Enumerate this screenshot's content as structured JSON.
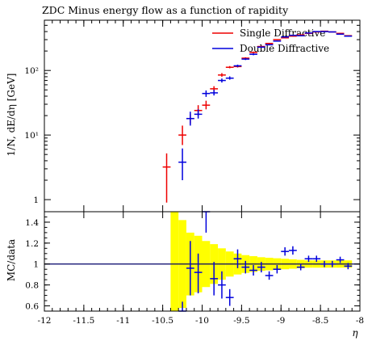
{
  "colors": {
    "single": "#ee0000",
    "double": "#0000dd",
    "band": "#ffff00",
    "refline": "#000066"
  },
  "chart_data": [
    {
      "type": "line",
      "panel": "main",
      "title": "ZDC Minus energy flow as a function of rapidity",
      "ylabel": "1/N, dE/dη [GeV]",
      "y_scale": "log",
      "ylim": [
        0.65,
        600
      ],
      "y_ticks": [
        {
          "value": 1,
          "label": "1"
        },
        {
          "value": 10,
          "label": "10¹"
        },
        {
          "value": 100,
          "label": "10²"
        }
      ],
      "series": [
        {
          "name": "Single Diffractive",
          "color_key": "single",
          "points": [
            {
              "x": -10.45,
              "y": 3.2,
              "lo": 0.9,
              "hi": 5.2
            },
            {
              "x": -10.25,
              "y": 10,
              "lo": 7,
              "hi": 14
            },
            {
              "x": -10.15,
              "y": 18,
              "lo": 15,
              "hi": 21
            },
            {
              "x": -10.05,
              "y": 24,
              "lo": 20,
              "hi": 29
            },
            {
              "x": -9.95,
              "y": 29,
              "lo": 25,
              "hi": 34
            },
            {
              "x": -9.85,
              "y": 52,
              "lo": 48,
              "hi": 57
            },
            {
              "x": -9.75,
              "y": 85,
              "lo": 80,
              "hi": 91
            },
            {
              "x": -9.65,
              "y": 112,
              "lo": 108,
              "hi": 117
            },
            {
              "x": -9.55,
              "y": 115,
              "lo": 111,
              "hi": 119
            },
            {
              "x": -9.45,
              "y": 155,
              "lo": 150,
              "hi": 160
            },
            {
              "x": -9.35,
              "y": 190,
              "lo": 185,
              "hi": 196
            },
            {
              "x": -9.25,
              "y": 235,
              "lo": 230,
              "hi": 240
            },
            {
              "x": -9.15,
              "y": 262,
              "lo": 257,
              "hi": 267
            },
            {
              "x": -9.05,
              "y": 300,
              "lo": 295,
              "hi": 305
            },
            {
              "x": -8.95,
              "y": 320,
              "lo": 315,
              "hi": 325
            },
            {
              "x": -8.85,
              "y": 340,
              "lo": 335,
              "hi": 345
            },
            {
              "x": -8.75,
              "y": 355,
              "lo": 350,
              "hi": 360
            },
            {
              "x": -8.65,
              "y": 375,
              "lo": 370,
              "hi": 380
            },
            {
              "x": -8.55,
              "y": 395,
              "lo": 390,
              "hi": 400
            },
            {
              "x": -8.45,
              "y": 405,
              "lo": 400,
              "hi": 410
            },
            {
              "x": -8.35,
              "y": 395,
              "lo": 390,
              "hi": 400
            },
            {
              "x": -8.25,
              "y": 375,
              "lo": 370,
              "hi": 380
            },
            {
              "x": -8.15,
              "y": 345,
              "lo": 340,
              "hi": 350
            }
          ]
        },
        {
          "name": "Double Diffractive",
          "color_key": "double",
          "points": [
            {
              "x": -10.25,
              "y": 3.8,
              "lo": 2.0,
              "hi": 6.2
            },
            {
              "x": -10.15,
              "y": 18,
              "lo": 14,
              "hi": 23
            },
            {
              "x": -10.05,
              "y": 21,
              "lo": 18,
              "hi": 25
            },
            {
              "x": -9.95,
              "y": 44,
              "lo": 39,
              "hi": 49
            },
            {
              "x": -9.85,
              "y": 45,
              "lo": 41,
              "hi": 50
            },
            {
              "x": -9.75,
              "y": 70,
              "lo": 65,
              "hi": 75
            },
            {
              "x": -9.65,
              "y": 76,
              "lo": 72,
              "hi": 81
            },
            {
              "x": -9.55,
              "y": 118,
              "lo": 113,
              "hi": 123
            },
            {
              "x": -9.45,
              "y": 150,
              "lo": 145,
              "hi": 155
            },
            {
              "x": -9.35,
              "y": 178,
              "lo": 172,
              "hi": 184
            },
            {
              "x": -9.25,
              "y": 230,
              "lo": 225,
              "hi": 235
            },
            {
              "x": -9.15,
              "y": 250,
              "lo": 245,
              "hi": 255
            },
            {
              "x": -9.05,
              "y": 285,
              "lo": 280,
              "hi": 290
            },
            {
              "x": -8.95,
              "y": 330,
              "lo": 325,
              "hi": 335
            },
            {
              "x": -8.85,
              "y": 350,
              "lo": 345,
              "hi": 355
            },
            {
              "x": -8.75,
              "y": 345,
              "lo": 340,
              "hi": 350
            },
            {
              "x": -8.65,
              "y": 380,
              "lo": 375,
              "hi": 385
            },
            {
              "x": -8.55,
              "y": 400,
              "lo": 395,
              "hi": 405
            },
            {
              "x": -8.45,
              "y": 400,
              "lo": 395,
              "hi": 405
            },
            {
              "x": -8.35,
              "y": 395,
              "lo": 390,
              "hi": 400
            },
            {
              "x": -8.25,
              "y": 365,
              "lo": 360,
              "hi": 370
            },
            {
              "x": -8.15,
              "y": 340,
              "lo": 335,
              "hi": 345
            }
          ]
        }
      ],
      "legend": [
        "Single Diffractive",
        "Double Diffractive"
      ],
      "legend_position": "top-right"
    },
    {
      "type": "line",
      "panel": "ratio",
      "ylabel": "MC/data",
      "xlabel": "η",
      "xlim": [
        -12,
        -8
      ],
      "ylim": [
        0.55,
        1.5
      ],
      "x_ticks": [
        {
          "value": -12,
          "label": "-12"
        },
        {
          "value": -11.5,
          "label": "-11.5"
        },
        {
          "value": -11,
          "label": "-11"
        },
        {
          "value": -10.5,
          "label": "-10.5"
        },
        {
          "value": -10,
          "label": "-10"
        },
        {
          "value": -9.5,
          "label": "-9.5"
        },
        {
          "value": -9,
          "label": "-9"
        },
        {
          "value": -8.5,
          "label": "-8.5"
        },
        {
          "value": -8,
          "label": "-8"
        }
      ],
      "y_ticks": [
        {
          "value": 0.6,
          "label": "0.6"
        },
        {
          "value": 0.8,
          "label": "0.8"
        },
        {
          "value": 1,
          "label": "1"
        },
        {
          "value": 1.2,
          "label": "1.2"
        },
        {
          "value": 1.4,
          "label": "1.4"
        }
      ],
      "uncertainty_band": [
        {
          "x0": -10.4,
          "x1": -10.3,
          "half": 0.5
        },
        {
          "x0": -10.3,
          "x1": -10.2,
          "half": 0.42
        },
        {
          "x0": -10.2,
          "x1": -10.1,
          "half": 0.3
        },
        {
          "x0": -10.1,
          "x1": -10.0,
          "half": 0.27
        },
        {
          "x0": -10.0,
          "x1": -9.9,
          "half": 0.22
        },
        {
          "x0": -9.9,
          "x1": -9.8,
          "half": 0.19
        },
        {
          "x0": -9.8,
          "x1": -9.7,
          "half": 0.15
        },
        {
          "x0": -9.7,
          "x1": -9.6,
          "half": 0.12
        },
        {
          "x0": -9.6,
          "x1": -9.5,
          "half": 0.1
        },
        {
          "x0": -9.5,
          "x1": -9.4,
          "half": 0.085
        },
        {
          "x0": -9.4,
          "x1": -9.3,
          "half": 0.075
        },
        {
          "x0": -9.3,
          "x1": -9.2,
          "half": 0.065
        },
        {
          "x0": -9.2,
          "x1": -9.1,
          "half": 0.06
        },
        {
          "x0": -9.1,
          "x1": -9.0,
          "half": 0.055
        },
        {
          "x0": -9.0,
          "x1": -8.9,
          "half": 0.05
        },
        {
          "x0": -8.9,
          "x1": -8.8,
          "half": 0.045
        },
        {
          "x0": -8.8,
          "x1": -8.7,
          "half": 0.04
        },
        {
          "x0": -8.7,
          "x1": -8.6,
          "half": 0.035
        },
        {
          "x0": -8.6,
          "x1": -8.5,
          "half": 0.035
        },
        {
          "x0": -8.5,
          "x1": -8.4,
          "half": 0.035
        },
        {
          "x0": -8.4,
          "x1": -8.3,
          "half": 0.035
        },
        {
          "x0": -8.3,
          "x1": -8.2,
          "half": 0.035
        },
        {
          "x0": -8.2,
          "x1": -8.1,
          "half": 0.035
        }
      ],
      "series": [
        {
          "name": "Double Diffractive",
          "color_key": "double",
          "points": [
            {
              "x": -10.25,
              "y": 0.55,
              "lo": 0.4,
              "hi": 0.64
            },
            {
              "x": -10.15,
              "y": 0.96,
              "lo": 0.7,
              "hi": 1.22
            },
            {
              "x": -10.05,
              "y": 0.92,
              "lo": 0.72,
              "hi": 1.1
            },
            {
              "x": -9.95,
              "y": 1.5,
              "lo": 1.3,
              "hi": 1.5
            },
            {
              "x": -9.85,
              "y": 0.86,
              "lo": 0.7,
              "hi": 1.02
            },
            {
              "x": -9.75,
              "y": 0.8,
              "lo": 0.67,
              "hi": 0.93
            },
            {
              "x": -9.65,
              "y": 0.68,
              "lo": 0.6,
              "hi": 0.76
            },
            {
              "x": -9.55,
              "y": 1.05,
              "lo": 0.96,
              "hi": 1.14
            },
            {
              "x": -9.45,
              "y": 0.97,
              "lo": 0.91,
              "hi": 1.03
            },
            {
              "x": -9.35,
              "y": 0.94,
              "lo": 0.89,
              "hi": 0.99
            },
            {
              "x": -9.25,
              "y": 0.97,
              "lo": 0.92,
              "hi": 1.02
            },
            {
              "x": -9.15,
              "y": 0.89,
              "lo": 0.85,
              "hi": 0.93
            },
            {
              "x": -9.05,
              "y": 0.95,
              "lo": 0.91,
              "hi": 0.99
            },
            {
              "x": -8.95,
              "y": 1.12,
              "lo": 1.08,
              "hi": 1.16
            },
            {
              "x": -8.85,
              "y": 1.13,
              "lo": 1.09,
              "hi": 1.17
            },
            {
              "x": -8.75,
              "y": 0.97,
              "lo": 0.94,
              "hi": 1.0
            },
            {
              "x": -8.65,
              "y": 1.05,
              "lo": 1.02,
              "hi": 1.08
            },
            {
              "x": -8.55,
              "y": 1.05,
              "lo": 1.02,
              "hi": 1.08
            },
            {
              "x": -8.45,
              "y": 1.0,
              "lo": 0.97,
              "hi": 1.03
            },
            {
              "x": -8.35,
              "y": 1.0,
              "lo": 0.97,
              "hi": 1.03
            },
            {
              "x": -8.25,
              "y": 1.04,
              "lo": 1.01,
              "hi": 1.07
            },
            {
              "x": -8.15,
              "y": 0.98,
              "lo": 0.95,
              "hi": 1.01
            }
          ]
        }
      ]
    }
  ]
}
